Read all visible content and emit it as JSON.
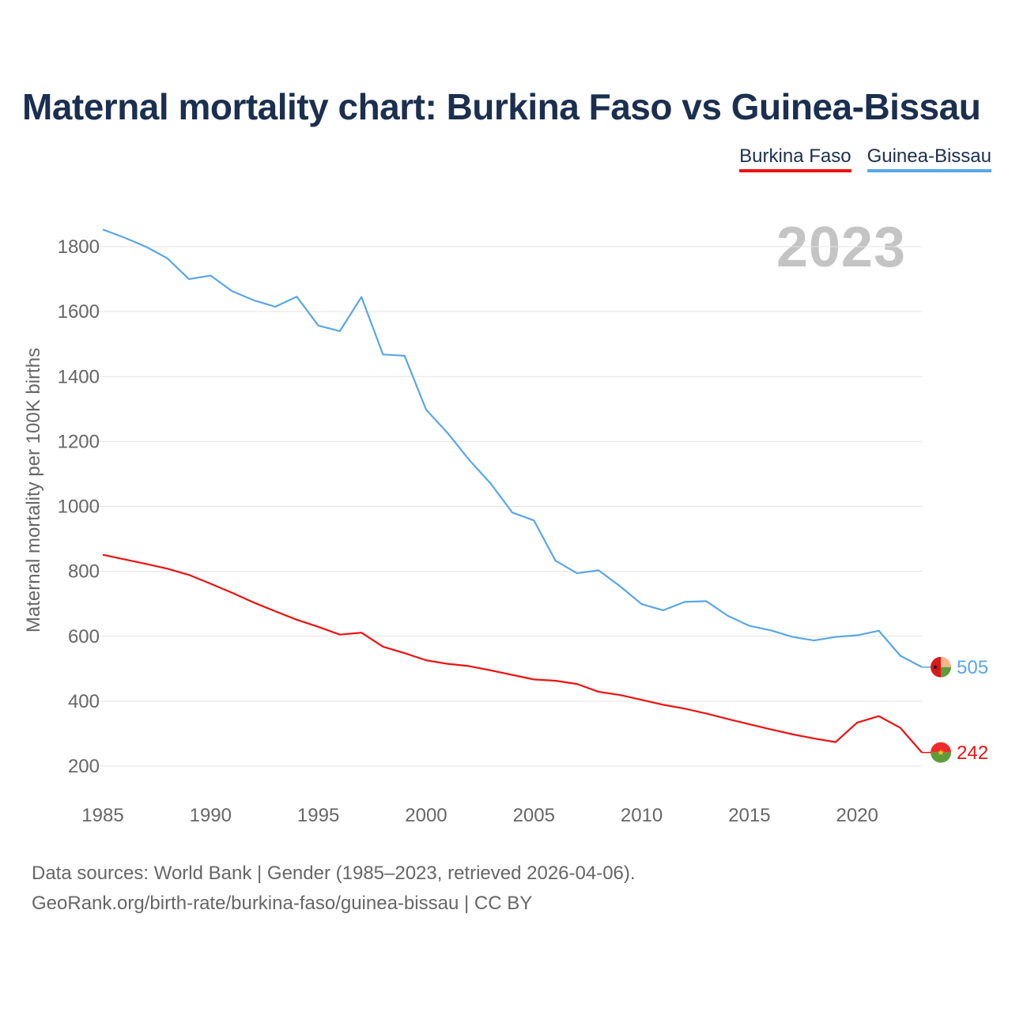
{
  "title": "Maternal mortality chart: Burkina Faso vs Guinea-Bissau",
  "legend": [
    {
      "label": "Burkina Faso",
      "color": "#ee1111"
    },
    {
      "label": "Guinea-Bissau",
      "color": "#5aa6e6"
    }
  ],
  "year_label": "2023",
  "footer": {
    "line1": "Data sources: World Bank | Gender (1985–2023, retrieved 2026-04-06).",
    "line2": "GeoRank.org/birth-rate/burkina-faso/guinea-bissau | CC BY"
  },
  "chart_data": {
    "type": "line",
    "title": "Maternal mortality chart: Burkina Faso vs Guinea-Bissau",
    "xlabel": "",
    "ylabel": "Maternal mortality per 100K births",
    "xlim": [
      1985,
      2023
    ],
    "ylim": [
      100,
      1950
    ],
    "grid": true,
    "x_ticks": [
      1985,
      1990,
      1995,
      2000,
      2005,
      2010,
      2015,
      2020
    ],
    "y_ticks": [
      200,
      400,
      600,
      800,
      1000,
      1200,
      1400,
      1600,
      1800
    ],
    "x": [
      1985,
      1986,
      1987,
      1988,
      1989,
      1990,
      1991,
      1992,
      1993,
      1994,
      1995,
      1996,
      1997,
      1998,
      1999,
      2000,
      2001,
      2002,
      2003,
      2004,
      2005,
      2006,
      2007,
      2008,
      2009,
      2010,
      2011,
      2012,
      2013,
      2014,
      2015,
      2016,
      2017,
      2018,
      2019,
      2020,
      2021,
      2022,
      2023
    ],
    "series": [
      {
        "name": "Burkina Faso",
        "color": "#ee1111",
        "values": [
          851,
          837,
          823,
          808,
          789,
          762,
          734,
          704,
          677,
          651,
          629,
          605,
          611,
          568,
          548,
          526,
          515,
          508,
          495,
          481,
          467,
          463,
          453,
          429,
          419,
          404,
          389,
          377,
          362,
          345,
          329,
          313,
          298,
          285,
          274,
          334,
          354,
          318,
          242
        ],
        "end_label": "242"
      },
      {
        "name": "Guinea-Bissau",
        "color": "#5aa6e6",
        "values": [
          1853,
          1828,
          1800,
          1764,
          1700,
          1711,
          1663,
          1635,
          1615,
          1646,
          1557,
          1540,
          1645,
          1468,
          1464,
          1298,
          1226,
          1143,
          1070,
          981,
          957,
          833,
          794,
          803,
          754,
          699,
          680,
          706,
          708,
          663,
          632,
          618,
          598,
          587,
          598,
          603,
          617,
          540,
          505
        ],
        "end_label": "505"
      }
    ]
  }
}
